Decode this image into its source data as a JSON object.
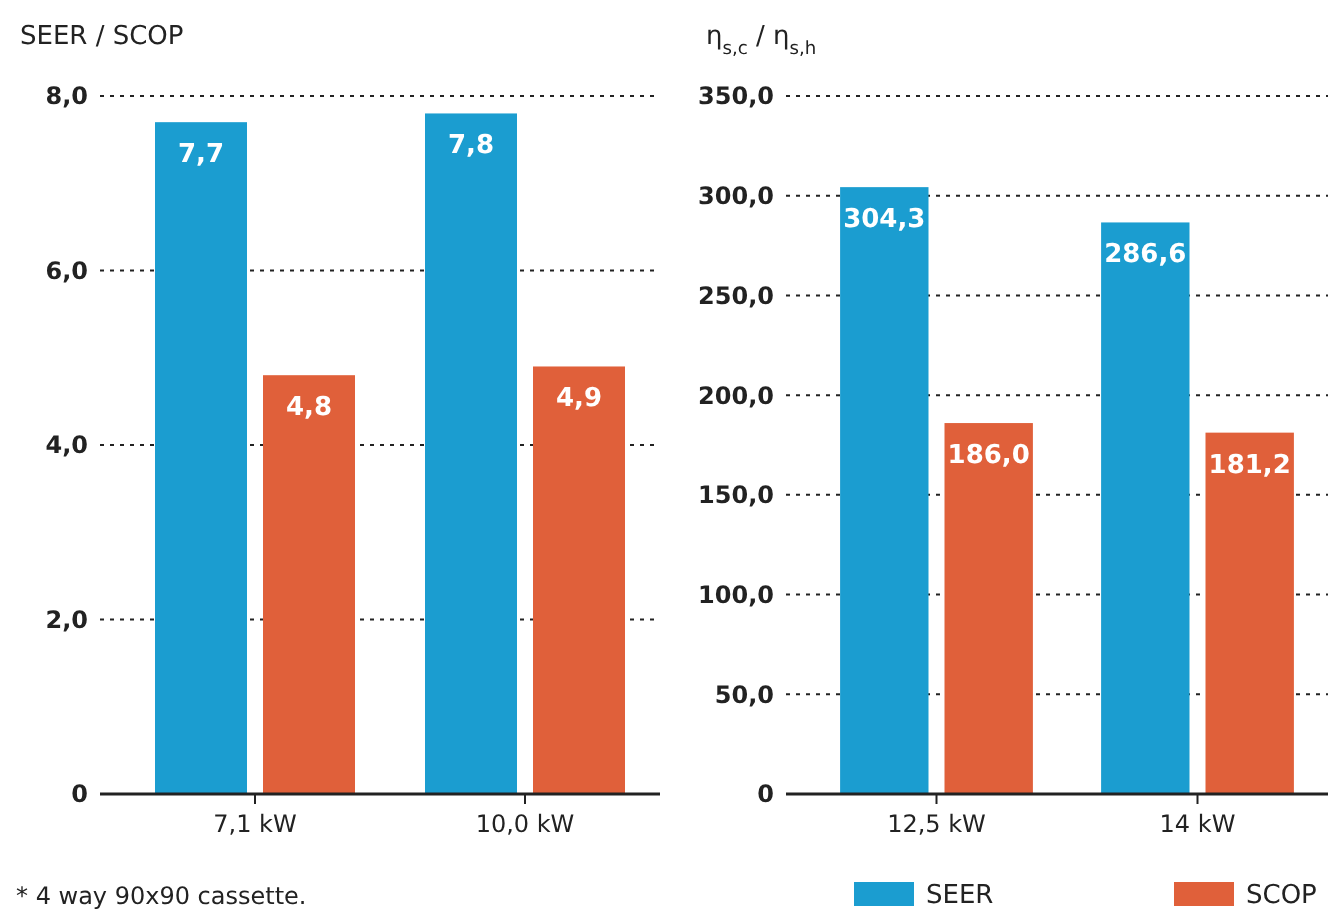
{
  "chart_data": [
    {
      "type": "bar",
      "ylabel": "SEER / SCOP",
      "categories": [
        "7,1 kW",
        "10,0 kW"
      ],
      "series": [
        {
          "color": "#1b9dd0",
          "values": [
            7.7,
            7.8
          ],
          "value_labels": [
            "7,7",
            "7,8"
          ]
        },
        {
          "color": "#e0603a",
          "values": [
            4.8,
            4.9
          ],
          "value_labels": [
            "4,8",
            "4,9"
          ]
        }
      ],
      "ylim": [
        0,
        8
      ],
      "yticks": [
        {
          "value": 0,
          "label": "0"
        },
        {
          "value": 2,
          "label": "2,0"
        },
        {
          "value": 4,
          "label": "4,0"
        },
        {
          "value": 6,
          "label": "6,0"
        },
        {
          "value": 8,
          "label": "8,0"
        }
      ],
      "grid": "y",
      "annotations": [
        "* 4 way 90x90 cassette."
      ]
    },
    {
      "type": "bar",
      "ylabel": "η$_{s,c}$ / η$_{s,h}$",
      "categories": [
        "12,5 kW",
        "14 kW"
      ],
      "series": [
        {
          "name": "SEER",
          "color": "#1b9dd0",
          "values": [
            304.3,
            286.6
          ],
          "value_labels": [
            "304,3",
            "286,6"
          ]
        },
        {
          "name": "SCOP",
          "color": "#e0603a",
          "values": [
            186.0,
            181.2
          ],
          "value_labels": [
            "186,0",
            "181,2"
          ]
        }
      ],
      "ylim": [
        0,
        350
      ],
      "yticks": [
        {
          "value": 0,
          "label": "0"
        },
        {
          "value": 50,
          "label": "50,0"
        },
        {
          "value": 100,
          "label": "100,0"
        },
        {
          "value": 150,
          "label": "150,0"
        },
        {
          "value": 200,
          "label": "200,0"
        },
        {
          "value": 250,
          "label": "250,0"
        },
        {
          "value": 300,
          "label": "300,0"
        },
        {
          "value": 350,
          "label": "350,0"
        }
      ],
      "grid": "y",
      "legend": "bottom right"
    }
  ]
}
